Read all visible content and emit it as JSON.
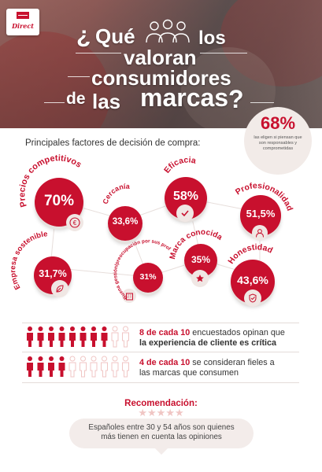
{
  "brand": {
    "logo_text": "Direct"
  },
  "hero": {
    "open_q": "¿",
    "w_que": "Qué",
    "w_los": "los",
    "w_valoran": "valoran",
    "w_consumidores": "consumidores",
    "w_de": "de",
    "w_las": "las",
    "w_marcas": "marcas",
    "close_q": "?"
  },
  "highlight": {
    "value": "68%",
    "description": "las eligen si piensan que son responsables y comprometidas"
  },
  "factors_title": "Principales factores de decisión de compra:",
  "factors": [
    {
      "key": "precios",
      "label": "Precios competitivos",
      "value": "70%",
      "icon": "euro-icon"
    },
    {
      "key": "cercania",
      "label": "Cercanía",
      "value": "33,6%",
      "icon": null
    },
    {
      "key": "eficacia",
      "label": "Eficacia",
      "value": "58%",
      "icon": "check-icon"
    },
    {
      "key": "profesionalidad",
      "label": "Profesionalidad",
      "value": "51,5%",
      "icon": "professional-icon"
    },
    {
      "key": "sostenible",
      "label": "Empresa sostenible",
      "value": "31,7%",
      "icon": "leaf-icon"
    },
    {
      "key": "gestion",
      "label": "Buena gestión/preocupación por sus profesionales",
      "value": "31%",
      "icon": "building-icon"
    },
    {
      "key": "marca",
      "label": "Marca conocida",
      "value": "35%",
      "icon": "star-icon"
    },
    {
      "key": "honestidad",
      "label": "Honestidad",
      "value": "43,6%",
      "icon": "shield-icon"
    }
  ],
  "stats": [
    {
      "highlight": "8 de cada 10",
      "rest": " encuestados opinan que",
      "highlight2": "la experiencia de cliente es crítica",
      "filled": 8,
      "total": 10
    },
    {
      "highlight": "4 de cada 10",
      "rest": " se consideran fieles a",
      "line2": "las marcas que consumen",
      "filled": 4,
      "total": 10
    }
  ],
  "recommendation": {
    "title": "Recomendación:",
    "stars": "★★★★★",
    "text_line1": "Españoles entre 30 y 54 años son quienes",
    "text_line2": "más tienen en cuenta las opiniones"
  },
  "colors": {
    "brand_red": "#c8102e",
    "light_panel": "#f3ecea",
    "icon_empty": "#f0c6c4"
  }
}
